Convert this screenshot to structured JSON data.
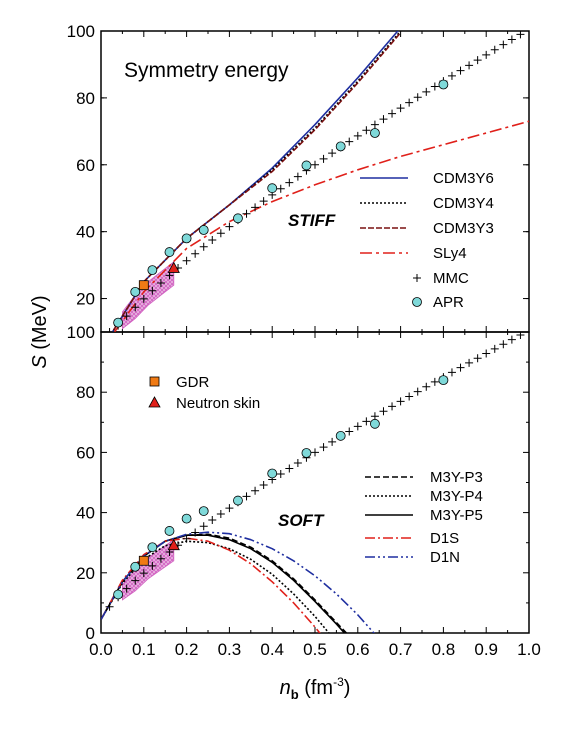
{
  "chart_data": [
    {
      "type": "line",
      "panel": "top",
      "title": "Symmetry energy",
      "tag": "STIFF",
      "xlim": [
        0.0,
        1.0
      ],
      "ylim": [
        10,
        100
      ],
      "y_ticks": [
        "100",
        "80",
        "60",
        "40",
        "20"
      ],
      "y_tick_values": [
        100,
        80,
        60,
        40,
        20
      ],
      "series": [
        {
          "name": "CDM3Y6",
          "color": "#1f2fa0",
          "dash": "",
          "x": [
            0,
            0.1,
            0.2,
            0.3,
            0.4,
            0.5,
            0.6,
            0.7
          ],
          "y": [
            4.5,
            25,
            38,
            48,
            59,
            72,
            86,
            101
          ]
        },
        {
          "name": "CDM3Y4",
          "color": "#000000",
          "dash": "2,2",
          "x": [
            0,
            0.1,
            0.2,
            0.3,
            0.4,
            0.5,
            0.6,
            0.7
          ],
          "y": [
            4.5,
            25,
            38,
            48,
            58.5,
            71,
            85,
            100
          ]
        },
        {
          "name": "CDM3Y3",
          "color": "#7a1010",
          "dash": "6,2",
          "x": [
            0,
            0.1,
            0.2,
            0.3,
            0.4,
            0.5,
            0.6,
            0.7
          ],
          "y": [
            4.5,
            25,
            38,
            48,
            58,
            70.5,
            84.5,
            99.5
          ]
        },
        {
          "name": "SLy4",
          "color": "#e0201a",
          "dash": "12,4,3,4",
          "x": [
            0,
            0.1,
            0.2,
            0.3,
            0.4,
            0.5,
            0.6,
            0.7,
            0.8,
            0.9,
            1.0
          ],
          "y": [
            4.5,
            22,
            35,
            43,
            49,
            54,
            58.5,
            62.5,
            66,
            69.5,
            73
          ]
        }
      ],
      "mmc": {
        "name": "MMC",
        "x_start": 0.02,
        "x_end": 1.0,
        "step": 0.02
      },
      "apr": {
        "name": "APR",
        "x": [
          0.04,
          0.08,
          0.12,
          0.16,
          0.2,
          0.24,
          0.32,
          0.4,
          0.48,
          0.56,
          0.64,
          0.8
        ],
        "y": [
          12.8,
          22,
          28.5,
          33.9,
          38,
          40.5,
          44,
          53,
          59.8,
          65.5,
          69.5,
          84
        ]
      },
      "gdr": {
        "name": "GDR",
        "x": [
          0.1
        ],
        "y": [
          24
        ]
      },
      "neutron_skin": {
        "name": "Neutron skin",
        "x": [
          0.17
        ],
        "y": [
          29
        ]
      }
    },
    {
      "type": "line",
      "panel": "bottom",
      "tag": "SOFT",
      "xlim": [
        0.0,
        1.0
      ],
      "ylim": [
        0,
        100
      ],
      "y_ticks": [
        "100",
        "80",
        "60",
        "40",
        "20",
        "0"
      ],
      "y_tick_values": [
        100,
        80,
        60,
        40,
        20,
        0
      ],
      "x_ticks": [
        "0.0",
        "0.1",
        "0.2",
        "0.3",
        "0.4",
        "0.5",
        "0.6",
        "0.7",
        "0.8",
        "0.9",
        "1.0"
      ],
      "x_tick_values": [
        0.0,
        0.1,
        0.2,
        0.3,
        0.4,
        0.5,
        0.6,
        0.7,
        0.8,
        0.9,
        1.0
      ],
      "series": [
        {
          "name": "M3Y-P3",
          "color": "#000000",
          "dash": "6,3",
          "x": [
            0,
            0.05,
            0.1,
            0.15,
            0.2,
            0.25,
            0.3,
            0.35,
            0.4,
            0.45,
            0.5,
            0.55,
            0.6,
            0.62
          ],
          "y": [
            4.5,
            17,
            25.5,
            30.5,
            32.5,
            32.8,
            31.5,
            28.5,
            24,
            18,
            11,
            3.5,
            -4,
            -7
          ]
        },
        {
          "name": "M3Y-P4",
          "color": "#000000",
          "dash": "2,2",
          "x": [
            0,
            0.05,
            0.1,
            0.15,
            0.2,
            0.25,
            0.3,
            0.35,
            0.4,
            0.45,
            0.5,
            0.55,
            0.6
          ],
          "y": [
            4.5,
            16.5,
            24.5,
            29,
            30.5,
            30,
            28,
            24.5,
            19.5,
            13,
            5.5,
            -3,
            -12
          ]
        },
        {
          "name": "M3Y-P5",
          "color": "#000000",
          "dash": "",
          "x": [
            0,
            0.05,
            0.1,
            0.15,
            0.2,
            0.25,
            0.3,
            0.35,
            0.4,
            0.45,
            0.5,
            0.55,
            0.6,
            0.62
          ],
          "y": [
            4.5,
            17,
            25.5,
            30.5,
            32.5,
            32.5,
            31,
            28,
            23.5,
            17.5,
            10.5,
            3,
            -5,
            -9
          ]
        },
        {
          "name": "D1S",
          "color": "#e0201a",
          "dash": "10,3,2,3",
          "x": [
            0,
            0.05,
            0.1,
            0.15,
            0.2,
            0.25,
            0.3,
            0.35,
            0.4,
            0.45,
            0.5,
            0.55
          ],
          "y": [
            4.5,
            17.5,
            26,
            30.5,
            31.5,
            30.5,
            27.5,
            23,
            17,
            10,
            2,
            -7
          ]
        },
        {
          "name": "D1N",
          "color": "#1f2fa0",
          "dash": "10,3,2,3,2,3",
          "x": [
            0,
            0.05,
            0.1,
            0.15,
            0.2,
            0.25,
            0.3,
            0.35,
            0.4,
            0.45,
            0.5,
            0.55,
            0.6,
            0.65,
            0.7
          ],
          "y": [
            4.5,
            17,
            25.5,
            30.5,
            32.8,
            33.5,
            33,
            31,
            28,
            24,
            19,
            13,
            6,
            -2,
            -10
          ]
        }
      ],
      "mmc": {
        "x_start": 0.02,
        "x_end": 1.0,
        "step": 0.02
      },
      "apr": {
        "x": [
          0.04,
          0.08,
          0.12,
          0.16,
          0.2,
          0.24,
          0.32,
          0.4,
          0.48,
          0.56,
          0.64,
          0.8
        ],
        "y": [
          12.8,
          22,
          28.5,
          33.9,
          38,
          40.5,
          44,
          53,
          59.8,
          65.5,
          69.5,
          84
        ]
      },
      "gdr": {
        "name": "GDR",
        "x": [
          0.1
        ],
        "y": [
          24
        ]
      },
      "neutron_skin": {
        "name": "Neutron skin",
        "x": [
          0.17
        ],
        "y": [
          29
        ]
      }
    }
  ],
  "axes": {
    "ylabel_symbol": "S",
    "ylabel_unit": " (MeV)",
    "xlabel_symbol": "n",
    "xlabel_sub": "b",
    "xlabel_unit_pre": " (fm",
    "xlabel_sup": "-3",
    "xlabel_unit_post": ")"
  },
  "colors": {
    "apr_fill": "#7fd9d9",
    "gdr_fill": "#f07a14",
    "neutron_skin_fill": "#e0201a",
    "band_fill": "#d060c0"
  }
}
